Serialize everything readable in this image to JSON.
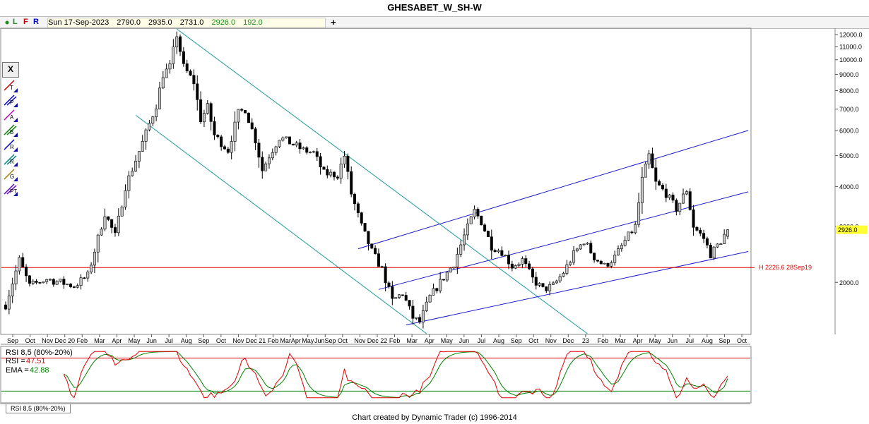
{
  "title": "GHESABET_W_SH-W",
  "infobar": {
    "dot_color": "#1a8f1a",
    "l": "L",
    "f": "F",
    "r": "R",
    "date": "Sun 17-Sep-2023",
    "open": "2790.0",
    "high": "2935.0",
    "low": "2731.0",
    "close": "2926.0",
    "change": "192.0",
    "plus": "+"
  },
  "toolbar": {
    "close_label": "X",
    "tools": [
      {
        "icon": "trendline-tool-icon",
        "letter": "T"
      },
      {
        "icon": "parallel-channel-tool-icon",
        "letter": "P"
      },
      {
        "icon": "abc-tool-icon",
        "letter": "A"
      },
      {
        "icon": "band-tool-icon",
        "letter": "B"
      },
      {
        "icon": "retracement-tool-icon",
        "letter": "R"
      },
      {
        "icon": "ratio-tool-icon",
        "letter": "R"
      },
      {
        "icon": "gann-tool-icon",
        "letter": "G"
      },
      {
        "icon": "price-time-tool-icon",
        "letter": "PT"
      }
    ]
  },
  "chart_data": {
    "type": "candlestick",
    "symbol": "GHESABET_W_SH-W",
    "scale": "log",
    "ylim": [
      1380,
      12500
    ],
    "y_ticks": [
      {
        "v": 12000,
        "label": "12000.0"
      },
      {
        "v": 11000,
        "label": "11000.0"
      },
      {
        "v": 10000,
        "label": "10000.0"
      },
      {
        "v": 9000,
        "label": "9000.0"
      },
      {
        "v": 8000,
        "label": "8000.0"
      },
      {
        "v": 7000,
        "label": "7000.0"
      },
      {
        "v": 6000,
        "label": "6000.0"
      },
      {
        "v": 5000,
        "label": "5000.0"
      },
      {
        "v": 4000,
        "label": "4000.0"
      },
      {
        "v": 3000,
        "label": "3000.0"
      },
      {
        "v": 2000,
        "label": "2000.0"
      }
    ],
    "last_price": {
      "v": 2926,
      "label": "2926.0",
      "color": "#ffff33"
    },
    "hline": {
      "v": 2226.6,
      "label": "H 2226.6 28Sep19",
      "color": "#e00000"
    },
    "x_labels": [
      "Sep",
      "Oct",
      "Nov",
      "Dec 20",
      "Feb",
      "Mar",
      "Apr",
      "May",
      "Jun",
      "Jul",
      "Aug",
      "Sep",
      "Oct",
      "Nov",
      "Dec 21",
      "Feb",
      "MarApr",
      "May",
      "JunSep",
      "Oct",
      "Nov",
      "Dec 22",
      "Feb",
      "Mar",
      "Apr",
      "May",
      "Jun",
      "Jul",
      "Aug",
      "Sep",
      "Oct",
      "Nov",
      "Dec",
      "23",
      "Feb",
      "Mar",
      "Apr",
      "May",
      "Jun",
      "Jul",
      "Aug",
      "Sep",
      "Oct"
    ],
    "anchors": [
      {
        "w": 0,
        "p": 1700
      },
      {
        "w": 4,
        "p": 2350
      },
      {
        "w": 7,
        "p": 1950
      },
      {
        "w": 12,
        "p": 2050
      },
      {
        "w": 20,
        "p": 1950
      },
      {
        "w": 24,
        "p": 2100
      },
      {
        "w": 29,
        "p": 3300
      },
      {
        "w": 32,
        "p": 2800
      },
      {
        "w": 35,
        "p": 4000
      },
      {
        "w": 40,
        "p": 5500
      },
      {
        "w": 44,
        "p": 7200
      },
      {
        "w": 46,
        "p": 9000
      },
      {
        "w": 48,
        "p": 9500
      },
      {
        "w": 50,
        "p": 12000
      },
      {
        "w": 52,
        "p": 9500
      },
      {
        "w": 55,
        "p": 8500
      },
      {
        "w": 57,
        "p": 6500
      },
      {
        "w": 59,
        "p": 7100
      },
      {
        "w": 61,
        "p": 5800
      },
      {
        "w": 65,
        "p": 5200
      },
      {
        "w": 68,
        "p": 6800
      },
      {
        "w": 70,
        "p": 7000
      },
      {
        "w": 73,
        "p": 5600
      },
      {
        "w": 75,
        "p": 4500
      },
      {
        "w": 77,
        "p": 5000
      },
      {
        "w": 80,
        "p": 5700
      },
      {
        "w": 83,
        "p": 5500
      },
      {
        "w": 87,
        "p": 5200
      },
      {
        "w": 90,
        "p": 5100
      },
      {
        "w": 93,
        "p": 4400
      },
      {
        "w": 97,
        "p": 4350
      },
      {
        "w": 99,
        "p": 5000
      },
      {
        "w": 101,
        "p": 3800
      },
      {
        "w": 104,
        "p": 3000
      },
      {
        "w": 107,
        "p": 2500
      },
      {
        "w": 110,
        "p": 2200
      },
      {
        "w": 113,
        "p": 1750
      },
      {
        "w": 116,
        "p": 1850
      },
      {
        "w": 119,
        "p": 1550
      },
      {
        "w": 121,
        "p": 1500
      },
      {
        "w": 124,
        "p": 1800
      },
      {
        "w": 127,
        "p": 2000
      },
      {
        "w": 131,
        "p": 2300
      },
      {
        "w": 134,
        "p": 2800
      },
      {
        "w": 137,
        "p": 3350
      },
      {
        "w": 139,
        "p": 3100
      },
      {
        "w": 142,
        "p": 2600
      },
      {
        "w": 145,
        "p": 2500
      },
      {
        "w": 148,
        "p": 2250
      },
      {
        "w": 151,
        "p": 2350
      },
      {
        "w": 154,
        "p": 2050
      },
      {
        "w": 157,
        "p": 1900
      },
      {
        "w": 160,
        "p": 1950
      },
      {
        "w": 163,
        "p": 2150
      },
      {
        "w": 166,
        "p": 2450
      },
      {
        "w": 169,
        "p": 2700
      },
      {
        "w": 172,
        "p": 2400
      },
      {
        "w": 175,
        "p": 2250
      },
      {
        "w": 178,
        "p": 2400
      },
      {
        "w": 181,
        "p": 2700
      },
      {
        "w": 184,
        "p": 3000
      },
      {
        "w": 186,
        "p": 4200
      },
      {
        "w": 188,
        "p": 5000
      },
      {
        "w": 190,
        "p": 4100
      },
      {
        "w": 193,
        "p": 3800
      },
      {
        "w": 196,
        "p": 3400
      },
      {
        "w": 199,
        "p": 3900
      },
      {
        "w": 201,
        "p": 3000
      },
      {
        "w": 204,
        "p": 2750
      },
      {
        "w": 206,
        "p": 2450
      },
      {
        "w": 209,
        "p": 2700
      },
      {
        "w": 211,
        "p": 2926
      }
    ],
    "last_candle": {
      "o": 2790,
      "h": 2935,
      "l": 2731,
      "c": 2926
    },
    "channels": [
      {
        "name": "falling-channel",
        "color": "#1e9a9a",
        "upper": [
          {
            "w": 50,
            "p": 12500
          },
          {
            "w": 170,
            "p": 1380
          }
        ],
        "lower": [
          {
            "w": 38,
            "p": 6700
          },
          {
            "w": 123,
            "p": 1380
          }
        ]
      },
      {
        "name": "rising-channel",
        "color": "#1a1ad0",
        "upper": [
          {
            "w": 103,
            "p": 2550
          },
          {
            "w": 217,
            "p": 6000
          }
        ],
        "mid": [
          {
            "w": 109,
            "p": 1900
          },
          {
            "w": 217,
            "p": 3850
          }
        ],
        "lower": [
          {
            "w": 117,
            "p": 1470
          },
          {
            "w": 217,
            "p": 2500
          }
        ]
      }
    ],
    "rsi": {
      "label": "RSI 8,5 (80%-20%)",
      "rsi_label": "RSI =",
      "rsi_value": "47.51",
      "rsi_color": "#e00000",
      "ema_label": "EMA =",
      "ema_value": "42.88",
      "ema_color": "#008000",
      "upper_level": 80,
      "lower_level": 20
    }
  },
  "footer": "Chart created by Dynamic Trader  (c) 1996-2014",
  "tab_label": "RSI 8,5 (80%-20%)"
}
